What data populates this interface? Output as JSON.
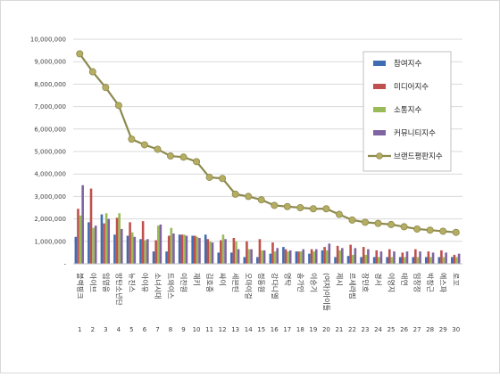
{
  "chart_data": {
    "type": "bar",
    "categories": [
      "블랙핑크",
      "아이브",
      "임영웅",
      "방탄소년단",
      "뉴진스",
      "아이유",
      "소녀시대",
      "트와이스",
      "이찬원",
      "재키",
      "김호중",
      "싸이",
      "세븐틴",
      "오마이걸",
      "정동원",
      "강다니엘",
      "영탁",
      "송가인",
      "이승기",
      "(여자)아이들",
      "제시",
      "르세라핌",
      "장민호",
      "경서",
      "이영지",
      "태연",
      "임창정",
      "박창근",
      "에스파",
      "로꼬"
    ],
    "ranks": [
      "1",
      "2",
      "3",
      "4",
      "5",
      "6",
      "7",
      "8",
      "9",
      "10",
      "11",
      "12",
      "13",
      "14",
      "15",
      "16",
      "17",
      "18",
      "19",
      "20",
      "21",
      "22",
      "23",
      "24",
      "25",
      "26",
      "27",
      "28",
      "29",
      "30"
    ],
    "series": [
      {
        "name": "참여지수",
        "color": "#3f6db3",
        "values": [
          1200000,
          1850000,
          2200000,
          1300000,
          1250000,
          1100000,
          550000,
          550000,
          1300000,
          1250000,
          1300000,
          500000,
          500000,
          300000,
          300000,
          450000,
          750000,
          550000,
          450000,
          600000,
          300000,
          350000,
          300000,
          300000,
          300000,
          300000,
          300000,
          300000,
          300000,
          300000
        ]
      },
      {
        "name": "미디어지수",
        "color": "#c0504d",
        "values": [
          2450000,
          3350000,
          1800000,
          2050000,
          1850000,
          1900000,
          1050000,
          1250000,
          1300000,
          1250000,
          1100000,
          1050000,
          1150000,
          1000000,
          1100000,
          950000,
          650000,
          550000,
          650000,
          750000,
          800000,
          850000,
          750000,
          600000,
          650000,
          500000,
          650000,
          550000,
          600000,
          400000
        ]
      },
      {
        "name": "소통지수",
        "color": "#9bbb59",
        "values": [
          2150000,
          1600000,
          2250000,
          2250000,
          1400000,
          1050000,
          1700000,
          1600000,
          1300000,
          1200000,
          1000000,
          1300000,
          1000000,
          650000,
          600000,
          550000,
          550000,
          550000,
          550000,
          600000,
          600000,
          400000,
          400000,
          300000,
          300000,
          300000,
          300000,
          300000,
          300000,
          300000
        ]
      },
      {
        "name": "커뮤니티지수",
        "color": "#8064a2",
        "values": [
          3500000,
          1700000,
          2000000,
          1550000,
          1200000,
          1100000,
          1750000,
          1350000,
          1250000,
          1150000,
          950000,
          1100000,
          650000,
          650000,
          600000,
          700000,
          600000,
          650000,
          650000,
          900000,
          700000,
          700000,
          650000,
          550000,
          550000,
          550000,
          550000,
          500000,
          500000,
          450000
        ]
      }
    ],
    "line_series": {
      "name": "브랜드평판지수",
      "color": "#8c8a4e",
      "marker_color": "#b5ad62",
      "values": [
        9350000,
        8550000,
        7850000,
        7050000,
        5550000,
        5300000,
        5100000,
        4800000,
        4750000,
        4550000,
        3850000,
        3800000,
        3100000,
        3000000,
        2850000,
        2600000,
        2550000,
        2500000,
        2450000,
        2450000,
        2200000,
        1950000,
        1850000,
        1800000,
        1750000,
        1650000,
        1550000,
        1500000,
        1450000,
        1400000
      ]
    },
    "ylim": [
      0,
      10000000
    ],
    "y_ticks": [
      "-",
      "1,000,000",
      "2,000,000",
      "3,000,000",
      "4,000,000",
      "5,000,000",
      "6,000,000",
      "7,000,000",
      "8,000,000",
      "9,000,000",
      "10,000,000"
    ],
    "grid": true,
    "legend_position": "right"
  }
}
